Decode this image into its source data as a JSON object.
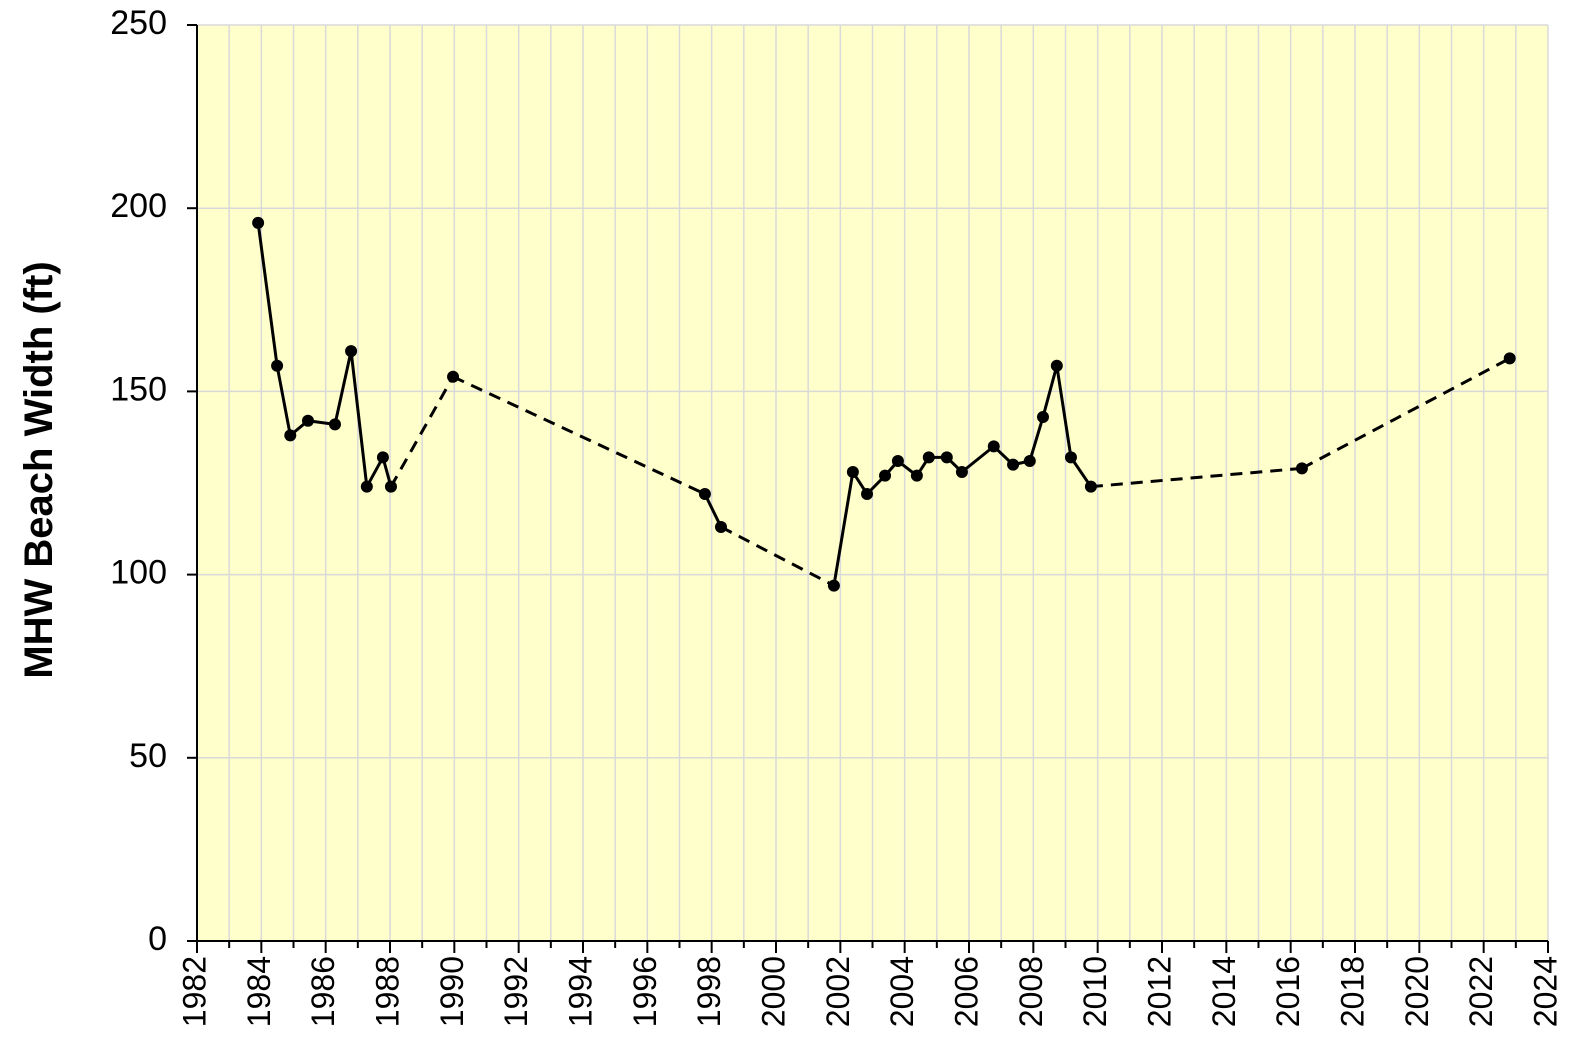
{
  "chart_data": {
    "type": "line",
    "y_label": "MHW Beach Width (ft)",
    "x": [
      1983.9,
      1984.49,
      1984.9,
      1985.45,
      1986.29,
      1986.79,
      1987.28,
      1987.78,
      1988.03,
      1989.96,
      1997.79,
      1998.29,
      2001.8,
      2002.39,
      2002.83,
      2003.39,
      2003.79,
      2004.38,
      2004.75,
      2005.31,
      2005.78,
      2006.77,
      2007.37,
      2007.89,
      2008.3,
      2008.73,
      2009.17,
      2009.79,
      2016.35,
      2022.81
    ],
    "values": [
      196,
      157,
      138,
      142,
      141,
      161,
      124,
      132,
      124,
      154,
      122,
      113,
      97,
      128,
      122,
      127,
      131,
      127,
      132,
      132,
      128,
      135,
      130,
      131,
      143,
      157,
      132,
      124,
      129,
      159
    ],
    "segment_styles": [
      "solid",
      "solid",
      "solid",
      "solid",
      "solid",
      "solid",
      "solid",
      "solid",
      "dashed",
      "dashed",
      "solid",
      "dashed",
      "solid",
      "solid",
      "solid",
      "solid",
      "solid",
      "solid",
      "solid",
      "solid",
      "solid",
      "solid",
      "solid",
      "solid",
      "solid",
      "solid",
      "solid",
      "dashed",
      "dashed"
    ],
    "color": "#000000",
    "background": "#ffffcc",
    "xlim": [
      1982,
      2024
    ],
    "xticks": [
      1982,
      1984,
      1986,
      1988,
      1990,
      1992,
      1994,
      1996,
      1998,
      2000,
      2002,
      2004,
      2006,
      2008,
      2010,
      2012,
      2014,
      2016,
      2018,
      2020,
      2022,
      2024
    ],
    "ylim": [
      0,
      250
    ],
    "yticks": [
      0,
      50,
      100,
      150,
      200,
      250
    ],
    "grid": true
  }
}
